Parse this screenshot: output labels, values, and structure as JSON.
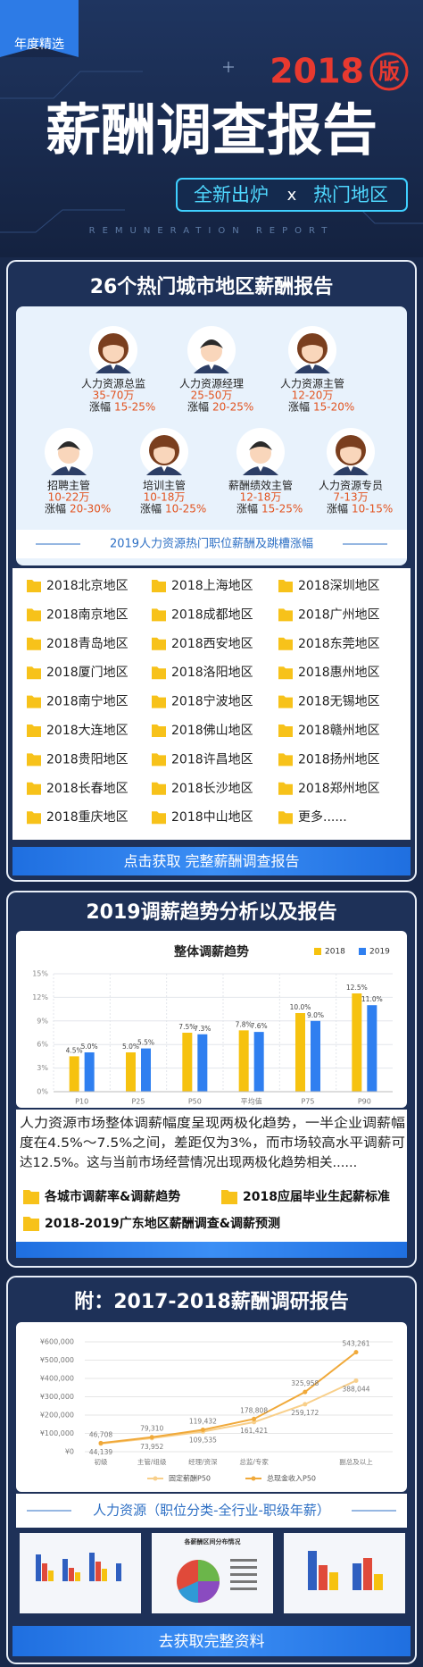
{
  "header": {
    "tag": "年度精选",
    "year": "2018",
    "edition": "版",
    "title": "薪酬调查报告",
    "subtitle_left": "全新出炉",
    "subtitle_x": "x",
    "subtitle_right": "热门地区",
    "english": "REMUNERATION REPORT"
  },
  "section1": {
    "title": "26个热门城市地区薪酬报告",
    "positions": [
      {
        "role": "人力资源总监",
        "salary": "35-70万",
        "raise_label": "涨幅",
        "raise": "15-25%"
      },
      {
        "role": "人力资源经理",
        "salary": "25-50万",
        "raise_label": "涨幅",
        "raise": "20-25%"
      },
      {
        "role": "人力资源主管",
        "salary": "12-20万",
        "raise_label": "涨幅",
        "raise": "15-20%"
      },
      {
        "role": "招聘主管",
        "salary": "10-22万",
        "raise_label": "涨幅",
        "raise": "20-30%"
      },
      {
        "role": "培训主管",
        "salary": "10-18万",
        "raise_label": "涨幅",
        "raise": "10-25%"
      },
      {
        "role": "薪酬绩效主管",
        "salary": "12-18万",
        "raise_label": "涨幅",
        "raise": "15-25%"
      },
      {
        "role": "人力资源专员",
        "salary": "7-13万",
        "raise_label": "涨幅",
        "raise": "10-15%"
      }
    ],
    "caption": "2019人力资源热门职位薪酬及跳槽涨幅",
    "regions": [
      "2018北京地区",
      "2018上海地区",
      "2018深圳地区",
      "2018南京地区",
      "2018成都地区",
      "2018广州地区",
      "2018青岛地区",
      "2018西安地区",
      "2018东莞地区",
      "2018厦门地区",
      "2018洛阳地区",
      "2018惠州地区",
      "2018南宁地区",
      "2018宁波地区",
      "2018无锡地区",
      "2018大连地区",
      "2018佛山地区",
      "2018赣州地区",
      "2018贵阳地区",
      "2018许昌地区",
      "2018扬州地区",
      "2018长春地区",
      "2018长沙地区",
      "2018郑州地区",
      "2018重庆地区",
      "2018中山地区",
      "更多......"
    ],
    "button": "点击获取 完整薪酬调查报告"
  },
  "section2": {
    "title": "2019调薪趋势分析以及报告",
    "paragraph_lines": [
      "人力资源市场整体调薪幅度呈现两极化趋势，一半企业调薪幅",
      "度在4.5%～7.5%之间，差距仅为3%，而市场较高水平调薪可",
      "达12.5%。这与当前市场经营情况出现两极化趋势相关......"
    ],
    "items": [
      "各城市调薪率&调薪趋势",
      "2018应届毕业生起薪标准",
      "2018-2019广东地区薪酬调查&调薪预测"
    ]
  },
  "section3": {
    "title": "附：2017-2018薪酬调研报告",
    "caption": "人力资源（职位分类-全行业-职级年薪）",
    "thumb_title": "各薪酬区间分布情况",
    "button": "去获取完整资料"
  },
  "chart_data": [
    {
      "type": "bar",
      "title": "整体调薪趋势",
      "categories": [
        "P10",
        "P25",
        "P50",
        "平均值",
        "P75",
        "P90"
      ],
      "series": [
        {
          "name": "2018",
          "color": "#f6c20f",
          "values": [
            4.5,
            5.0,
            7.5,
            7.8,
            10.0,
            12.5
          ],
          "value_labels": [
            "4.5%",
            "5.0%",
            "7.5%",
            "7.8%",
            "10.0%",
            "12.5%"
          ]
        },
        {
          "name": "2019",
          "color": "#2f7ff0",
          "values": [
            5.0,
            5.5,
            7.3,
            7.6,
            9.0,
            11.0
          ],
          "value_labels": [
            "5.0%",
            "5.5%",
            "7.3%",
            "7.6%",
            "9.0%",
            "11.0%"
          ]
        }
      ],
      "ylim": [
        0,
        15
      ],
      "yticks": [
        {
          "value": 0,
          "label": "0%"
        },
        {
          "value": 3,
          "label": "3%"
        },
        {
          "value": 6,
          "label": "6%"
        },
        {
          "value": 9,
          "label": "9%"
        },
        {
          "value": 12,
          "label": "12%"
        },
        {
          "value": 15,
          "label": "15%"
        }
      ],
      "grid": true,
      "legend": "top-right"
    },
    {
      "type": "line",
      "categories": [
        "初级",
        "主管/组级",
        "经理/资深",
        "总监/专家",
        null,
        "副总及以上"
      ],
      "series": [
        {
          "name": "固定薪酬P50",
          "color": "#f8cf8a",
          "values": [
            44139,
            73952,
            109535,
            161421,
            259172,
            388044
          ],
          "value_labels": [
            "44,139",
            "73,952",
            "109,535",
            "161,421",
            "259,172",
            "388,044"
          ]
        },
        {
          "name": "总现金收入P50",
          "color": "#f0a93a",
          "values": [
            46708,
            79310,
            119432,
            178808,
            325958,
            543261
          ],
          "value_labels": [
            "46,708",
            "79,310",
            "119,432",
            "178,808",
            "325,958",
            "543,261"
          ]
        }
      ],
      "ylim": [
        0,
        600000
      ],
      "yticks": [
        {
          "value": 0,
          "label": "¥0"
        },
        {
          "value": 100000,
          "label": "¥100,000"
        },
        {
          "value": 200000,
          "label": "¥200,000"
        },
        {
          "value": 300000,
          "label": "¥300,000"
        },
        {
          "value": 400000,
          "label": "¥400,000"
        },
        {
          "value": 500000,
          "label": "¥500,000"
        },
        {
          "value": 600000,
          "label": "¥600,000"
        }
      ],
      "grid": true,
      "legend": "bottom"
    }
  ]
}
